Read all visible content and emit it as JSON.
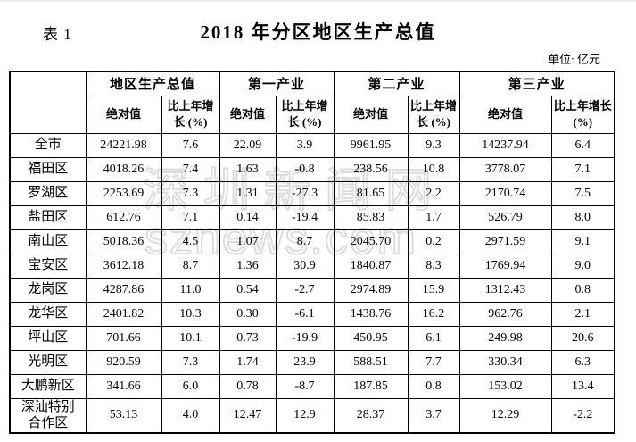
{
  "page": {
    "table_label": "表 1",
    "title": "2018 年分区地区生产总值",
    "unit": "单位: 亿元"
  },
  "watermark": {
    "line1": "深圳新闻网",
    "line2": "sznews.com",
    "color": "#dcdcdc"
  },
  "table": {
    "groups": [
      "地区生产总值",
      "第一产业",
      "第二产业",
      "第三产业"
    ],
    "abs_label": "绝对值",
    "growth_label": "比上年增长 (%)",
    "rows": [
      {
        "region": "全市",
        "values": [
          "24221.98",
          "7.6",
          "22.09",
          "3.9",
          "9961.95",
          "9.3",
          "14237.94",
          "6.4"
        ]
      },
      {
        "region": "福田区",
        "values": [
          "4018.26",
          "7.4",
          "1.63",
          "-0.8",
          "238.56",
          "10.8",
          "3778.07",
          "7.1"
        ]
      },
      {
        "region": "罗湖区",
        "values": [
          "2253.69",
          "7.3",
          "1.31",
          "-27.3",
          "81.65",
          "2.2",
          "2170.74",
          "7.5"
        ]
      },
      {
        "region": "盐田区",
        "values": [
          "612.76",
          "7.1",
          "0.14",
          "-19.4",
          "85.83",
          "1.7",
          "526.79",
          "8.0"
        ]
      },
      {
        "region": "南山区",
        "values": [
          "5018.36",
          "4.5",
          "1.07",
          "8.7",
          "2045.70",
          "0.2",
          "2971.59",
          "9.1"
        ]
      },
      {
        "region": "宝安区",
        "values": [
          "3612.18",
          "8.7",
          "1.36",
          "30.9",
          "1840.87",
          "8.3",
          "1769.94",
          "9.0"
        ]
      },
      {
        "region": "龙岗区",
        "values": [
          "4287.86",
          "11.0",
          "0.54",
          "-2.7",
          "2974.89",
          "15.9",
          "1312.43",
          "0.8"
        ]
      },
      {
        "region": "龙华区",
        "values": [
          "2401.82",
          "10.3",
          "0.30",
          "-6.1",
          "1438.76",
          "16.2",
          "962.76",
          "2.1"
        ]
      },
      {
        "region": "坪山区",
        "values": [
          "701.66",
          "10.1",
          "0.73",
          "-19.9",
          "450.95",
          "6.1",
          "249.98",
          "20.6"
        ]
      },
      {
        "region": "光明区",
        "values": [
          "920.59",
          "7.3",
          "1.74",
          "23.9",
          "588.51",
          "7.7",
          "330.34",
          "6.3"
        ]
      },
      {
        "region": "大鹏新区",
        "values": [
          "341.66",
          "6.0",
          "0.78",
          "-8.7",
          "187.85",
          "0.8",
          "153.02",
          "13.4"
        ]
      },
      {
        "region": "深汕特别合作区",
        "values": [
          "53.13",
          "4.0",
          "12.47",
          "12.9",
          "28.37",
          "3.7",
          "12.29",
          "-2.2"
        ]
      }
    ]
  }
}
